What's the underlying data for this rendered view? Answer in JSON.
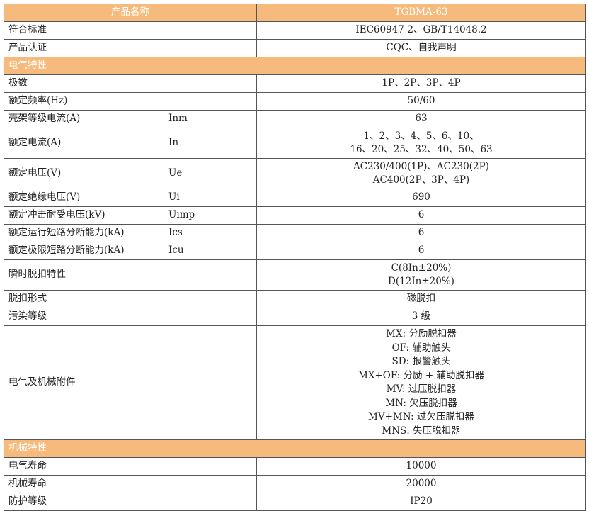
{
  "header": {
    "name_label": "产品名称",
    "model": "TGBMA-63"
  },
  "colors": {
    "section_bg": "#F6BB7C",
    "section_text": "#FFFFFF",
    "border": "#555555"
  },
  "rows_top": [
    {
      "label": "符合标准",
      "value": [
        "IEC60947-2、GB/T14048.2"
      ]
    },
    {
      "label": "产品认证",
      "value": [
        "CQC、自我声明"
      ]
    }
  ],
  "section_electrical": "电气特性",
  "rows_electrical": [
    {
      "label": "极数",
      "symbol": "",
      "value": [
        "1P、2P、3P、4P"
      ]
    },
    {
      "label": "额定频率(Hz)",
      "symbol": "",
      "value": [
        "50/60"
      ]
    },
    {
      "label": "壳架等级电流(A)",
      "symbol": "Inm",
      "value": [
        "63"
      ]
    },
    {
      "label": "额定电流(A)",
      "symbol": "In",
      "value": [
        "1、2、3、4、5、6、10、",
        "16、20、25、32、40、50、63"
      ]
    },
    {
      "label": "额定电压(V)",
      "symbol": "Ue",
      "value": [
        "AC230/400(1P)、AC230(2P)",
        "AC400(2P、3P、4P)"
      ]
    },
    {
      "label": "额定绝缘电压(V)",
      "symbol": "Ui",
      "value": [
        "690"
      ]
    },
    {
      "label": "额定冲击耐受电压(kV)",
      "symbol": "Uimp",
      "value": [
        "6"
      ]
    },
    {
      "label": "额定运行短路分断能力(kA)",
      "symbol": "Ics",
      "value": [
        "6"
      ]
    },
    {
      "label": "额定极限短路分断能力(kA)",
      "symbol": "Icu",
      "value": [
        "6"
      ]
    },
    {
      "label": "瞬时脱扣特性",
      "symbol": "",
      "value": [
        "C(8In±20%)",
        "D(12In±20%)"
      ]
    },
    {
      "label": "脱扣形式",
      "symbol": "",
      "value": [
        "磁脱扣"
      ]
    },
    {
      "label": "污染等级",
      "symbol": "",
      "value": [
        "3 级"
      ]
    },
    {
      "label": "电气及机械附件",
      "symbol": "",
      "value": [
        "MX: 分励脱扣器",
        "OF: 辅助触头",
        "SD: 报警触头",
        "MX+OF: 分励 + 辅助脱扣器",
        "MV: 过压脱扣器",
        "MN: 欠压脱扣器",
        "MV+MN: 过欠压脱扣器",
        "MNS: 失压脱扣器"
      ]
    }
  ],
  "section_mechanical": "机械特性",
  "rows_mechanical": [
    {
      "label": "电气寿命",
      "value": [
        "10000"
      ]
    },
    {
      "label": "机械寿命",
      "value": [
        "20000"
      ]
    },
    {
      "label": "防护等级",
      "value": [
        "IP20"
      ]
    }
  ]
}
